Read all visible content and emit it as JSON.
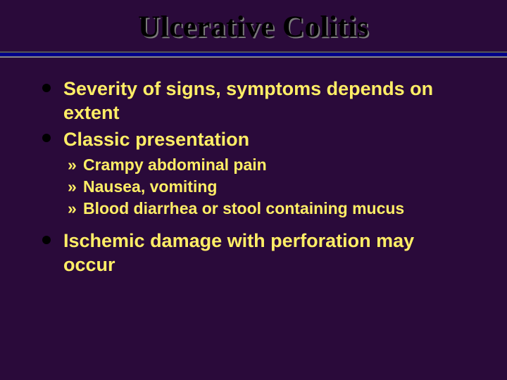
{
  "slide": {
    "title": "Ulcerative Colitis",
    "title_fontsize": 43,
    "title_color": "#000000",
    "title_shadow": "#7a7a7a",
    "background_color": "#2a0a3a",
    "divider": {
      "line1_color": "#555555",
      "line2_color": "#000088",
      "line3_color": "#888888",
      "line1_h": 2,
      "line2_h": 5,
      "line3_h": 2
    },
    "body_color": "#ffee66",
    "l1_fontsize": 27,
    "l2_fontsize": 23,
    "l1_bullet_color": "#000000",
    "l2_bullet_glyph": "»",
    "items": [
      {
        "text": "Severity of signs, symptoms depends on extent",
        "sub": []
      },
      {
        "text": "Classic presentation",
        "sub": [
          "Crampy abdominal pain",
          "Nausea, vomiting",
          "Blood diarrhea or stool containing mucus"
        ]
      },
      {
        "text": "Ischemic damage with perforation may occur",
        "sub": []
      }
    ]
  }
}
